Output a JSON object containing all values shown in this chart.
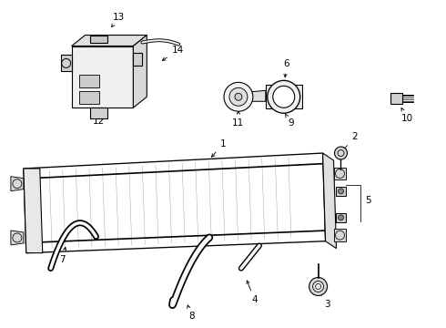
{
  "background_color": "#ffffff",
  "line_color": "#000000",
  "fig_width": 4.9,
  "fig_height": 3.6,
  "dpi": 100,
  "label_fontsize": 7.5
}
